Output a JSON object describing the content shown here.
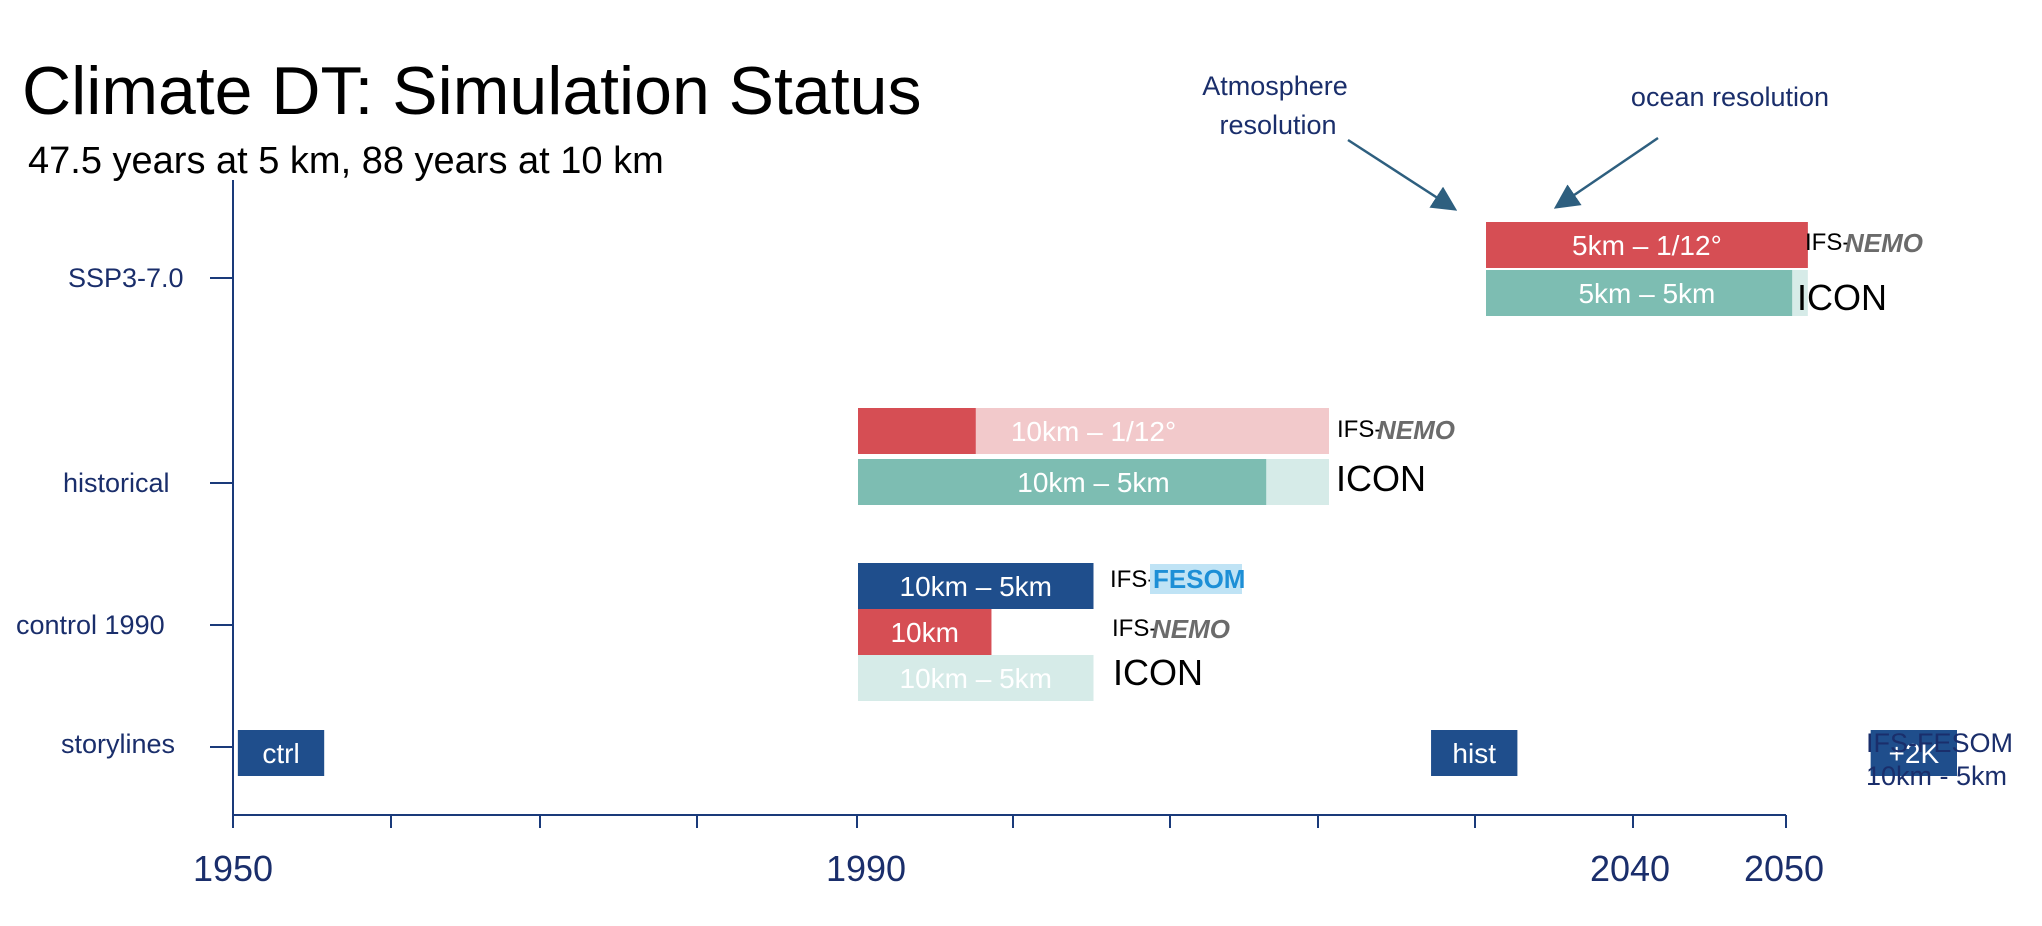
{
  "title": "Climate DT: Simulation Status",
  "subtitle": "47.5 years at 5 km, 88 years at 10 km",
  "axis": {
    "tick_labels": [
      "1950",
      "1990",
      "2040",
      "2050"
    ],
    "rows": [
      "SSP3-7.0",
      "historical",
      "control 1990",
      "storylines"
    ]
  },
  "annotations": {
    "atmosphere": [
      "Atmosphere",
      "resolution"
    ],
    "ocean": "ocean resolution"
  },
  "colors": {
    "axis": "#1a3a7a",
    "red": "#d64e54",
    "red_light": "#f2c9cb",
    "teal": "#7dbdb2",
    "teal_light": "#d6ebe8",
    "navy": "#1f4e8c",
    "arrow": "#2e5f7f"
  },
  "model_labels": {
    "ifs_nemo_prefix": "IFS-",
    "nemo": "NEMO",
    "ifs_fesom_prefix": "IFS-",
    "fesom": "FESOM",
    "icon": "ICON"
  },
  "storyline_note": [
    "IFS-FESOM",
    "10km - 5km"
  ],
  "bars": [
    {
      "label": "5km – 1/12°",
      "row": "SSP3-7.0",
      "color": "red",
      "start_year": 2030,
      "end_year": 2050.5,
      "done_end_year": 2050.5
    },
    {
      "label": "5km – 5km",
      "row": "SSP3-7.0",
      "color": "teal",
      "start_year": 2030,
      "end_year": 2050.5,
      "done_end_year": 2049.5
    },
    {
      "label": "10km – 1/12°",
      "row": "historical",
      "color": "red",
      "start_year": 1990,
      "end_year": 2020,
      "done_end_year": 1997.5
    },
    {
      "label": "10km – 5km",
      "row": "historical",
      "color": "teal",
      "start_year": 1990,
      "end_year": 2020,
      "done_end_year": 2016
    },
    {
      "label": "10km – 5km",
      "row": "control 1990",
      "color": "navy",
      "start_year": 1990,
      "end_year": 2005,
      "done_end_year": 2005
    },
    {
      "label": "10km",
      "row": "control 1990",
      "color": "red",
      "start_year": 1990,
      "end_year": 1998.5,
      "done_end_year": 1998.5
    },
    {
      "label": "10km – 5km",
      "row": "control 1990",
      "color": "teal_light",
      "start_year": 1990,
      "end_year": 2005,
      "done_end_year": 1990
    }
  ],
  "storyline_boxes": [
    {
      "label": "ctrl",
      "start_year": 1950.5,
      "end_year": 1956
    },
    {
      "label": "hist",
      "start_year": 2026.5,
      "end_year": 2032
    },
    {
      "label": "+2K",
      "start_year": 2054.5,
      "end_year": 2060
    }
  ]
}
